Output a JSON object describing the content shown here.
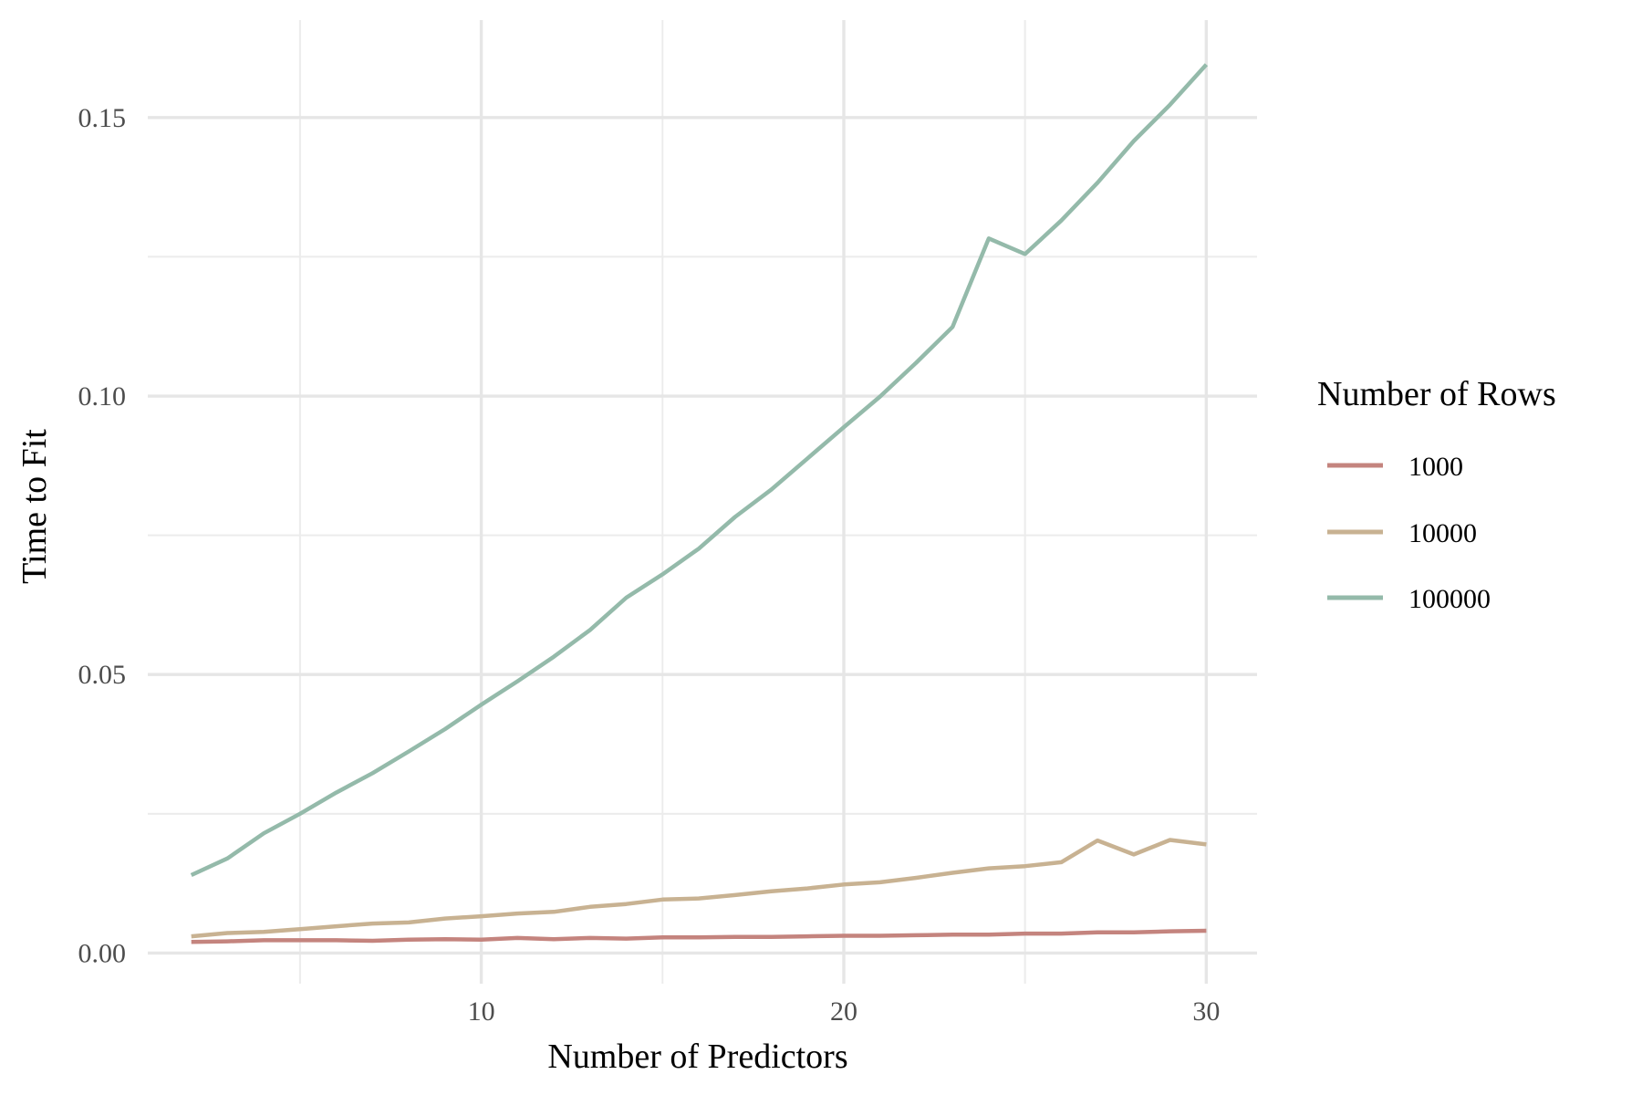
{
  "chart_data": {
    "type": "line",
    "title": "",
    "xlabel": "Number of Predictors",
    "ylabel": "Time to Fit",
    "xlim": [
      0.8,
      31.4
    ],
    "ylim": [
      -0.0055,
      0.1675
    ],
    "x_major_ticks": [
      10,
      20,
      30
    ],
    "x_minor_ticks": [
      5,
      15,
      25
    ],
    "y_major_ticks": [
      0.0,
      0.05,
      0.1,
      0.15
    ],
    "y_minor_ticks": [
      0.025,
      0.075,
      0.125
    ],
    "x_tick_labels": [
      "10",
      "20",
      "30"
    ],
    "y_tick_labels": [
      "0.00",
      "0.05",
      "0.10",
      "0.15"
    ],
    "grid": true,
    "legend": {
      "title": "Number of Rows",
      "position": "right"
    },
    "x": [
      2,
      3,
      4,
      5,
      6,
      7,
      8,
      9,
      10,
      11,
      12,
      13,
      14,
      15,
      16,
      17,
      18,
      19,
      20,
      21,
      22,
      23,
      24,
      25,
      26,
      27,
      28,
      29,
      30
    ],
    "series": [
      {
        "name": "1000",
        "color": "#c4847e",
        "values": [
          0.002,
          0.0021,
          0.0023,
          0.0023,
          0.0023,
          0.0022,
          0.0024,
          0.0025,
          0.0024,
          0.0027,
          0.0025,
          0.0027,
          0.0026,
          0.0028,
          0.0028,
          0.0029,
          0.0029,
          0.003,
          0.0031,
          0.0031,
          0.0032,
          0.0033,
          0.0033,
          0.0035,
          0.0035,
          0.0037,
          0.0037,
          0.0039,
          0.004
        ]
      },
      {
        "name": "10000",
        "color": "#c8b292",
        "values": [
          0.003,
          0.0036,
          0.0038,
          0.0043,
          0.0048,
          0.0053,
          0.0055,
          0.0062,
          0.0066,
          0.0071,
          0.0074,
          0.0083,
          0.0088,
          0.0096,
          0.0098,
          0.0104,
          0.0111,
          0.0116,
          0.0123,
          0.0127,
          0.0135,
          0.0144,
          0.0152,
          0.0156,
          0.0163,
          0.0202,
          0.0177,
          0.0203,
          0.0195
        ]
      },
      {
        "name": "100000",
        "color": "#94baaa",
        "values": [
          0.014,
          0.017,
          0.0215,
          0.025,
          0.0288,
          0.0323,
          0.0362,
          0.0402,
          0.0446,
          0.0488,
          0.0532,
          0.058,
          0.0638,
          0.068,
          0.0726,
          0.0783,
          0.0832,
          0.0888,
          0.0944,
          0.0999,
          0.106,
          0.1124,
          0.1283,
          0.1255,
          0.1315,
          0.1383,
          0.1458,
          0.1523,
          0.1595
        ]
      }
    ]
  }
}
